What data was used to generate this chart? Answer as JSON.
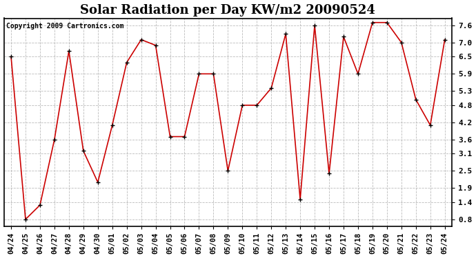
{
  "title": "Solar Radiation per Day KW/m2 20090524",
  "copyright": "Copyright 2009 Cartronics.com",
  "labels": [
    "04/24",
    "04/25",
    "04/26",
    "04/27",
    "04/28",
    "04/29",
    "04/30",
    "05/01",
    "05/02",
    "05/03",
    "05/04",
    "05/05",
    "05/06",
    "05/07",
    "05/08",
    "05/09",
    "05/10",
    "05/11",
    "05/12",
    "05/13",
    "05/14",
    "05/15",
    "05/16",
    "05/17",
    "05/18",
    "05/19",
    "05/20",
    "05/21",
    "05/22",
    "05/23",
    "05/24"
  ],
  "values": [
    6.5,
    0.8,
    1.3,
    3.6,
    6.7,
    3.2,
    2.1,
    4.1,
    6.3,
    7.1,
    6.9,
    3.7,
    3.7,
    5.9,
    5.9,
    2.5,
    4.8,
    4.8,
    5.4,
    7.3,
    1.5,
    7.6,
    2.4,
    7.2,
    5.9,
    7.7,
    7.7,
    7.0,
    5.0,
    4.1,
    7.1
  ],
  "yticks": [
    0.8,
    1.4,
    1.9,
    2.5,
    3.1,
    3.6,
    4.2,
    4.8,
    5.3,
    5.9,
    6.5,
    7.0,
    7.6
  ],
  "ylim": [
    0.55,
    7.85
  ],
  "line_color": "#cc0000",
  "marker": "+",
  "marker_color": "#000000",
  "bg_color": "#ffffff",
  "grid_color": "#aaaaaa",
  "title_fontsize": 13,
  "copyright_fontsize": 7,
  "tick_fontsize": 7.5
}
